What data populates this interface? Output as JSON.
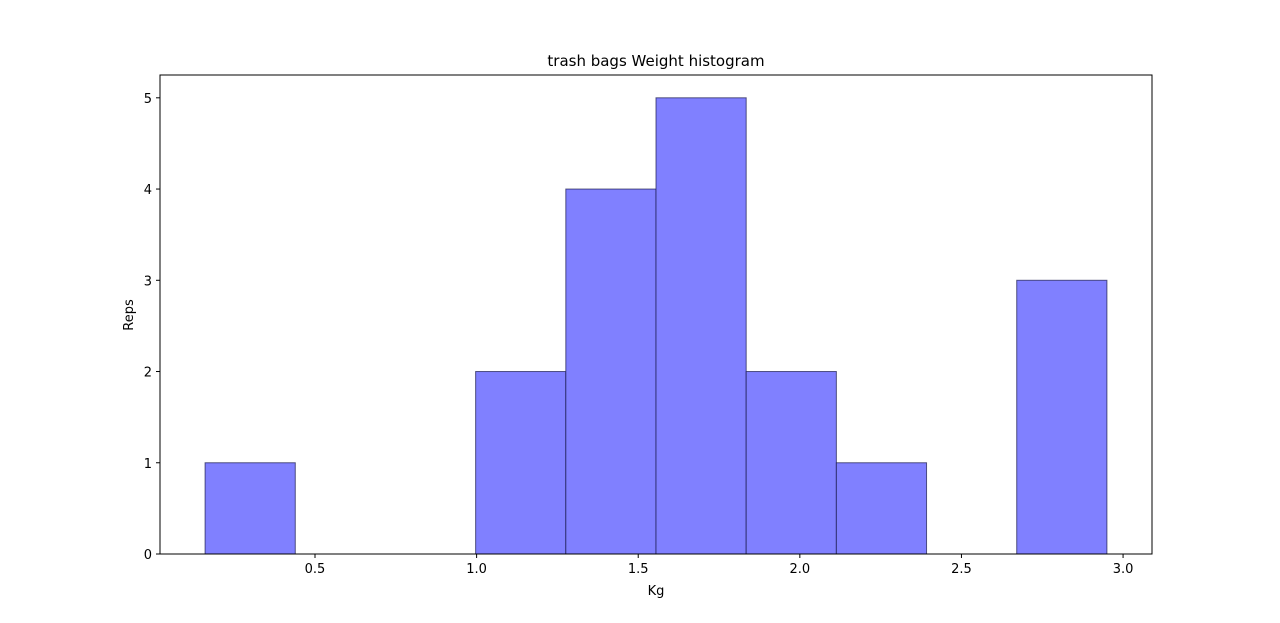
{
  "chart_data": {
    "type": "bar",
    "title": "trash bags Weight histogram",
    "xlabel": "Kg",
    "ylabel": "Reps",
    "bins": [
      {
        "x0": 0.16,
        "x1": 0.439,
        "count": 1
      },
      {
        "x0": 0.439,
        "x1": 0.718,
        "count": 0
      },
      {
        "x0": 0.718,
        "x1": 0.997,
        "count": 0
      },
      {
        "x0": 0.997,
        "x1": 1.276,
        "count": 2
      },
      {
        "x0": 1.276,
        "x1": 1.555,
        "count": 4
      },
      {
        "x0": 1.555,
        "x1": 1.834,
        "count": 5
      },
      {
        "x0": 1.834,
        "x1": 2.113,
        "count": 2
      },
      {
        "x0": 2.113,
        "x1": 2.392,
        "count": 1
      },
      {
        "x0": 2.392,
        "x1": 2.671,
        "count": 0
      },
      {
        "x0": 2.671,
        "x1": 2.95,
        "count": 3
      }
    ],
    "xlim": [
      0.0205,
      3.0895
    ],
    "ylim": [
      0,
      5.25
    ],
    "xticks": [
      0.5,
      1.0,
      1.5,
      2.0,
      2.5,
      3.0
    ],
    "xtick_labels": [
      "0.5",
      "1.0",
      "1.5",
      "2.0",
      "2.5",
      "3.0"
    ],
    "yticks": [
      0,
      1,
      2,
      3,
      4,
      5
    ],
    "ytick_labels": [
      "0",
      "1",
      "2",
      "3",
      "4",
      "5"
    ],
    "bar_color": "#8080ff",
    "bar_edge_color": "#1a1a4d",
    "grid": false,
    "legend": false
  }
}
